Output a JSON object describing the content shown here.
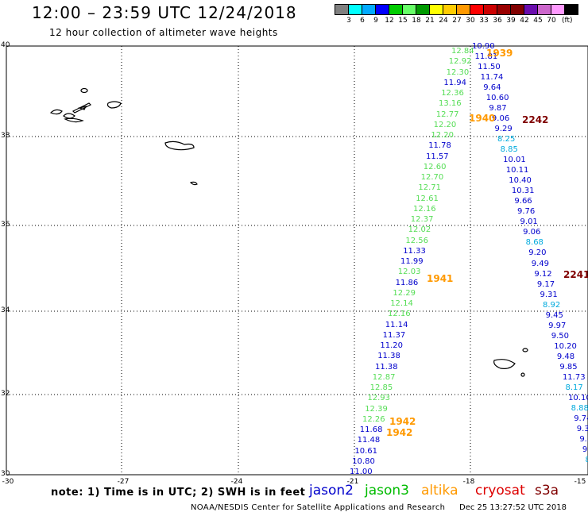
{
  "header": {
    "title": "12:00 – 23:59 UTC 12/24/2018",
    "subtitle": "12 hour collection of altimeter wave heights"
  },
  "colorbar": {
    "colors": [
      "#808080",
      "#00ffff",
      "#00aaff",
      "#0000ff",
      "#00cc00",
      "#66ff66",
      "#009900",
      "#ffff00",
      "#ffcc00",
      "#ff9900",
      "#ff0000",
      "#cc0000",
      "#990000",
      "#800000",
      "#6a0dad",
      "#cc66cc",
      "#ff99ff",
      "#000000"
    ],
    "labels": [
      "3",
      "6",
      "9",
      "12",
      "15",
      "18",
      "21",
      "24",
      "27",
      "30",
      "33",
      "36",
      "39",
      "42",
      "45",
      "70"
    ],
    "unit": "(ft)"
  },
  "axes": {
    "y_labels": [
      "40",
      "38",
      "36",
      "34",
      "32",
      "30"
    ],
    "x_labels": [
      "-30",
      "-27",
      "-24",
      "-21",
      "-18",
      "-15"
    ]
  },
  "legend": {
    "note": "note: 1) Time is in UTC; 2) SWH is in feet",
    "jason2": "jason2",
    "jason3": "jason3",
    "altika": "altika",
    "cryosat": "cryosat",
    "s3a": "s3a",
    "colors": {
      "jason2": "#0000cc",
      "jason3": "#00bb00",
      "altika": "#ff9900",
      "cryosat": "#dd0000",
      "s3a": "#800000"
    }
  },
  "footer": {
    "credit": "NOAA/NESDIS Center for Satellite Applications and Research",
    "date": "Dec 25 13:27:52 UTC 2018"
  },
  "track_west": [
    "12.84",
    "12.92",
    "12.30",
    "11.94",
    "12.36",
    "13.16",
    "12.77",
    "12.20",
    "12.20",
    "11.78",
    "11.57",
    "12.60",
    "12.70",
    "12.71",
    "12.61",
    "12.16",
    "12.37",
    "12.02",
    "12.56",
    "11.33",
    "11.99",
    "12.03",
    "11.86",
    "12.29",
    "12.14",
    "12.16",
    "11.14",
    "11.37",
    "11.20",
    "11.38",
    "11.38",
    "12.87",
    "12.85",
    "12.93",
    "12.39",
    "12.26",
    "11.68",
    "11.48",
    "10.61",
    "10.80",
    "11.00"
  ],
  "track_east": [
    "10.90",
    "11.81",
    "11.50",
    "11.74",
    "9.64",
    "10.60",
    "9.87",
    "9.06",
    "9.29",
    "8.25",
    "8.85",
    "10.01",
    "10.11",
    "10.40",
    "10.31",
    "9.66",
    "9.76",
    "9.01",
    "9.06",
    "8.68",
    "9.20",
    "9.49",
    "9.12",
    "9.17",
    "9.31",
    "8.92",
    "9.45",
    "9.97",
    "9.50",
    "10.20",
    "9.48",
    "9.85",
    "11.73",
    "8.17",
    "10.10",
    "8.88",
    "9.74",
    "9.3",
    "9.5",
    "9.",
    "8",
    "."
  ],
  "time_labels": [
    "1939",
    "1940",
    "2242",
    "1941",
    "2241",
    "1942",
    "1942"
  ]
}
